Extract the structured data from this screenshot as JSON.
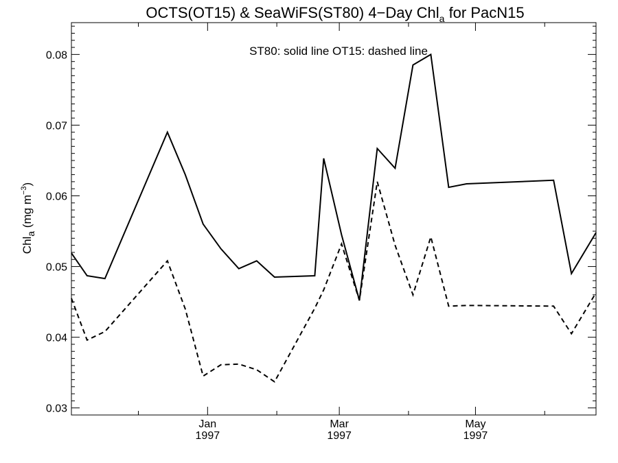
{
  "chart_data": {
    "type": "line",
    "title_main": "OCTS(OT15) & SeaWiFS(ST80) 4−Day Chl",
    "title_subscript": "a",
    "title_tail": " for PacN15",
    "ylabel_main": "Chl",
    "ylabel_subscript": "a",
    "ylabel_unit_prefix": " (mg m",
    "ylabel_unit_superscript": "−3",
    "ylabel_unit_suffix": ")",
    "legend_text": "ST80: solid line   OT15: dashed line",
    "xlim": [
      "1996-11-01",
      "1997-06-24"
    ],
    "ylim": [
      0.029,
      0.0845
    ],
    "y_ticks": [
      0.03,
      0.04,
      0.05,
      0.06,
      0.07,
      0.08
    ],
    "y_tick_labels": [
      "0.03",
      "0.04",
      "0.05",
      "0.06",
      "0.07",
      "0.08"
    ],
    "x_major_ticks": [
      {
        "date": "1997-01-01",
        "month": "Jan",
        "year": "1997"
      },
      {
        "date": "1997-03-01",
        "month": "Mar",
        "year": "1997"
      },
      {
        "date": "1997-05-01",
        "month": "May",
        "year": "1997"
      }
    ],
    "x_minor_ticks": [
      "1996-12-01",
      "1997-02-01",
      "1997-04-01",
      "1997-06-01"
    ],
    "series": [
      {
        "label": "ST80",
        "style": "solid",
        "color": "#000000",
        "x": [
          "1996-11-01",
          "1996-11-08",
          "1996-11-16",
          "1996-12-14",
          "1996-12-22",
          "1996-12-30",
          "1997-01-07",
          "1997-01-15",
          "1997-01-23",
          "1997-01-31",
          "1997-02-18",
          "1997-02-22",
          "1997-03-02",
          "1997-03-10",
          "1997-03-18",
          "1997-03-26",
          "1997-04-03",
          "1997-04-11",
          "1997-04-19",
          "1997-04-27",
          "1997-06-05",
          "1997-06-13",
          "1997-06-24"
        ],
        "y": [
          0.0519,
          0.0487,
          0.0483,
          0.069,
          0.063,
          0.056,
          0.0525,
          0.0497,
          0.0508,
          0.0485,
          0.0487,
          0.0653,
          0.0545,
          0.0452,
          0.0667,
          0.0639,
          0.0785,
          0.08,
          0.0612,
          0.0617,
          0.0622,
          0.049,
          0.0548
        ]
      },
      {
        "label": "OT15",
        "style": "dashed",
        "color": "#000000",
        "x": [
          "1996-11-01",
          "1996-11-08",
          "1996-11-16",
          "1996-12-14",
          "1996-12-22",
          "1996-12-30",
          "1997-01-07",
          "1997-01-15",
          "1997-01-23",
          "1997-01-31",
          "1997-02-18",
          "1997-02-22",
          "1997-03-02",
          "1997-03-10",
          "1997-03-18",
          "1997-03-26",
          "1997-04-03",
          "1997-04-11",
          "1997-04-19",
          "1997-04-27",
          "1997-06-05",
          "1997-06-13",
          "1997-06-24"
        ],
        "y": [
          0.0455,
          0.0396,
          0.0408,
          0.0508,
          0.044,
          0.0345,
          0.0361,
          0.0362,
          0.0354,
          0.0337,
          0.0441,
          0.0467,
          0.0532,
          0.0452,
          0.062,
          0.053,
          0.046,
          0.0542,
          0.0444,
          0.0445,
          0.0444,
          0.0405,
          0.0463
        ]
      }
    ]
  }
}
